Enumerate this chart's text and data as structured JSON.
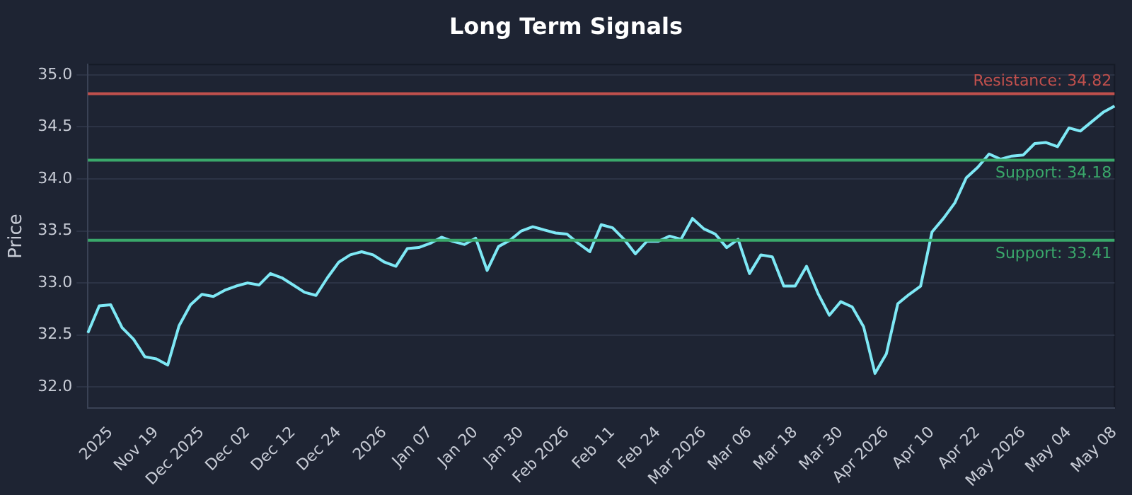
{
  "chart_data": {
    "type": "line",
    "title": "Long Term Signals",
    "ylabel": "Price",
    "categories": [
      null,
      null,
      "2025",
      null,
      null,
      null,
      "Nov 19",
      null,
      null,
      null,
      "Dec 2025",
      null,
      null,
      null,
      "Dec 02",
      null,
      null,
      null,
      "Dec 12",
      null,
      null,
      null,
      "Dec 24",
      null,
      null,
      null,
      "2026",
      null,
      null,
      null,
      "Jan 07",
      null,
      null,
      null,
      "Jan 20",
      null,
      null,
      null,
      "Jan 30",
      null,
      null,
      null,
      "Feb 2026",
      null,
      null,
      null,
      "Feb 11",
      null,
      null,
      null,
      "Feb 24",
      null,
      null,
      null,
      "Mar 2026",
      null,
      null,
      null,
      "Mar 06",
      null,
      null,
      null,
      "Mar 18",
      null,
      null,
      null,
      "Mar 30",
      null,
      null,
      null,
      "Apr 2026",
      null,
      null,
      null,
      "Apr 10",
      null,
      null,
      null,
      "Apr 22",
      null,
      null,
      null,
      "May 2026",
      null,
      null,
      null,
      "May 04",
      null,
      null,
      null,
      "May 08"
    ],
    "series": [
      {
        "color": "#7ee8f5",
        "values": [
          32.52,
          32.78,
          32.79,
          32.57,
          32.46,
          32.29,
          32.27,
          32.21,
          32.59,
          32.79,
          32.89,
          32.87,
          32.93,
          32.97,
          33.0,
          32.98,
          33.09,
          33.05,
          32.98,
          32.91,
          32.88,
          33.05,
          33.2,
          33.27,
          33.3,
          33.27,
          33.2,
          33.16,
          33.33,
          33.34,
          33.38,
          33.44,
          33.4,
          33.37,
          33.43,
          33.12,
          33.35,
          33.41,
          33.5,
          33.54,
          33.51,
          33.48,
          33.47,
          33.38,
          33.3,
          33.56,
          33.53,
          33.42,
          33.28,
          33.4,
          33.4,
          33.45,
          33.42,
          33.62,
          33.52,
          33.47,
          33.34,
          33.42,
          33.09,
          33.27,
          33.25,
          32.97,
          32.97,
          33.16,
          32.9,
          32.69,
          32.82,
          32.77,
          32.58,
          32.13,
          32.32,
          32.8,
          32.89,
          32.97,
          33.49,
          33.62,
          33.77,
          34.01,
          34.11,
          34.24,
          34.19,
          34.22,
          34.23,
          34.34,
          34.35,
          34.31,
          34.49,
          34.46,
          34.55,
          34.64,
          34.7
        ]
      }
    ],
    "ylim": [
      31.8,
      35.1
    ],
    "yticks": [
      {
        "value": 32,
        "label": "32.0"
      },
      32.5,
      {
        "value": 33,
        "label": "33.0"
      },
      33.5,
      {
        "value": 34,
        "label": "34.0"
      },
      34.5,
      {
        "value": 35,
        "label": "35.0"
      }
    ],
    "ref_lines": [
      {
        "axis": "y",
        "value": 34.82,
        "label": "Resistance: 34.82",
        "color": "#c0504d"
      },
      {
        "axis": "y",
        "value": 34.18,
        "label": "Support: 34.18",
        "color": "#3aa86b"
      },
      {
        "axis": "y",
        "value": 33.41,
        "label": "Support: 33.41",
        "color": "#3aa86b"
      }
    ],
    "grid": "y",
    "legend": false,
    "marker": "none",
    "line_style": "solid"
  }
}
